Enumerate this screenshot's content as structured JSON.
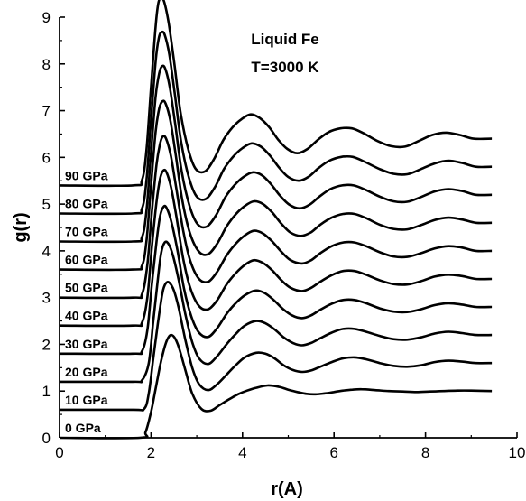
{
  "chart_data": {
    "type": "line",
    "title": "Liquid Fe",
    "subtitle": "T=3000 K",
    "xlabel": "r(A)",
    "ylabel": "g(r)",
    "xlim": [
      0,
      10
    ],
    "ylim": [
      0,
      9
    ],
    "xticks": [
      0,
      2,
      4,
      6,
      8,
      10
    ],
    "yticks": [
      0,
      1,
      2,
      3,
      4,
      5,
      6,
      7,
      8,
      9
    ],
    "grid": false,
    "legend": "labels at left of each curve",
    "series": [
      {
        "name": "0 GPa",
        "offset": 0.0,
        "x": [
          1.75,
          1.88,
          2.0,
          2.1,
          2.2,
          2.3,
          2.38,
          2.45,
          2.53,
          2.62,
          2.75,
          2.9,
          3.1,
          3.3,
          3.5,
          3.7,
          3.9,
          4.1,
          4.3,
          4.55,
          4.8,
          5.0,
          5.2,
          5.4,
          5.6,
          5.8,
          6.0,
          6.2,
          6.4,
          6.6,
          6.9,
          7.2,
          7.5,
          7.8,
          8.1,
          8.4,
          8.7,
          9.0,
          9.45
        ],
        "y": [
          0.0,
          0.12,
          0.55,
          1.05,
          1.55,
          1.95,
          2.15,
          2.2,
          2.12,
          1.9,
          1.45,
          0.95,
          0.62,
          0.58,
          0.7,
          0.82,
          0.93,
          1.01,
          1.07,
          1.12,
          1.09,
          1.03,
          0.98,
          0.94,
          0.93,
          0.95,
          0.98,
          1.01,
          1.03,
          1.04,
          1.02,
          1.0,
          0.99,
          0.98,
          0.99,
          1.0,
          1.01,
          1.01,
          1.0
        ]
      },
      {
        "name": "10 GPa",
        "offset": 0.6,
        "x": [
          1.6,
          1.85,
          1.95,
          2.05,
          2.15,
          2.25,
          2.32,
          2.4,
          2.5,
          2.6,
          2.75,
          2.9,
          3.05,
          3.25,
          3.45,
          3.65,
          3.85,
          4.05,
          4.3,
          4.5,
          4.7,
          4.9,
          5.1,
          5.3,
          5.5,
          5.7,
          5.95,
          6.2,
          6.45,
          6.7,
          7.0,
          7.3,
          7.6,
          7.9,
          8.2,
          8.5,
          8.8,
          9.1,
          9.45
        ],
        "y": [
          0.0,
          0.02,
          0.35,
          1.1,
          1.85,
          2.5,
          2.7,
          2.72,
          2.55,
          2.2,
          1.5,
          0.9,
          0.55,
          0.42,
          0.55,
          0.75,
          0.95,
          1.12,
          1.22,
          1.2,
          1.1,
          0.95,
          0.85,
          0.81,
          0.84,
          0.92,
          1.02,
          1.1,
          1.12,
          1.08,
          1.0,
          0.94,
          0.92,
          0.95,
          1.02,
          1.05,
          1.03,
          1.0,
          1.0
        ]
      },
      {
        "name": "20 GPa",
        "offset": 1.2,
        "x": [
          1.6,
          1.8,
          1.95,
          2.05,
          2.15,
          2.22,
          2.3,
          2.38,
          2.48,
          2.6,
          2.75,
          2.9,
          3.05,
          3.25,
          3.45,
          3.65,
          3.85,
          4.05,
          4.3,
          4.5,
          4.7,
          4.9,
          5.1,
          5.3,
          5.5,
          5.7,
          5.95,
          6.2,
          6.45,
          6.7,
          7.0,
          7.3,
          7.6,
          7.9,
          8.2,
          8.5,
          8.8,
          9.1,
          9.45
        ],
        "y": [
          0.0,
          0.03,
          0.4,
          1.3,
          2.2,
          2.75,
          2.98,
          2.95,
          2.7,
          2.2,
          1.45,
          0.85,
          0.5,
          0.38,
          0.55,
          0.8,
          1.02,
          1.2,
          1.3,
          1.25,
          1.12,
          0.95,
          0.83,
          0.78,
          0.83,
          0.93,
          1.05,
          1.13,
          1.13,
          1.07,
          0.98,
          0.91,
          0.9,
          0.95,
          1.03,
          1.07,
          1.04,
          1.0,
          1.0
        ]
      },
      {
        "name": "30 GPa",
        "offset": 1.8,
        "x": [
          1.6,
          1.8,
          1.92,
          2.02,
          2.12,
          2.2,
          2.28,
          2.35,
          2.45,
          2.58,
          2.72,
          2.88,
          3.05,
          3.25,
          3.45,
          3.65,
          3.85,
          4.05,
          4.28,
          4.48,
          4.68,
          4.88,
          5.08,
          5.3,
          5.5,
          5.7,
          5.95,
          6.2,
          6.45,
          6.7,
          7.0,
          7.3,
          7.6,
          7.9,
          8.2,
          8.5,
          8.8,
          9.1,
          9.45
        ],
        "y": [
          0.0,
          0.05,
          0.5,
          1.5,
          2.4,
          2.95,
          3.15,
          3.1,
          2.8,
          2.2,
          1.4,
          0.8,
          0.45,
          0.36,
          0.55,
          0.85,
          1.08,
          1.25,
          1.35,
          1.3,
          1.15,
          0.96,
          0.82,
          0.76,
          0.82,
          0.94,
          1.07,
          1.15,
          1.15,
          1.08,
          0.97,
          0.9,
          0.89,
          0.95,
          1.04,
          1.08,
          1.05,
          1.0,
          1.0
        ]
      },
      {
        "name": "40 GPa",
        "offset": 2.4,
        "x": [
          1.6,
          1.8,
          1.92,
          2.02,
          2.12,
          2.2,
          2.27,
          2.34,
          2.44,
          2.56,
          2.7,
          2.86,
          3.05,
          3.25,
          3.45,
          3.65,
          3.85,
          4.05,
          4.25,
          4.45,
          4.65,
          4.85,
          5.05,
          5.3,
          5.5,
          5.7,
          5.95,
          6.2,
          6.45,
          6.7,
          7.0,
          7.3,
          7.6,
          7.9,
          8.2,
          8.5,
          8.8,
          9.1,
          9.45
        ],
        "y": [
          0.0,
          0.06,
          0.6,
          1.7,
          2.65,
          3.15,
          3.32,
          3.28,
          2.95,
          2.3,
          1.45,
          0.8,
          0.42,
          0.35,
          0.55,
          0.88,
          1.12,
          1.3,
          1.4,
          1.34,
          1.18,
          0.97,
          0.81,
          0.74,
          0.81,
          0.94,
          1.08,
          1.17,
          1.17,
          1.09,
          0.97,
          0.89,
          0.88,
          0.95,
          1.05,
          1.09,
          1.06,
          1.0,
          1.0
        ]
      },
      {
        "name": "50 GPa",
        "offset": 3.0,
        "x": [
          1.6,
          1.8,
          1.92,
          2.02,
          2.12,
          2.2,
          2.26,
          2.33,
          2.43,
          2.55,
          2.7,
          2.86,
          3.05,
          3.25,
          3.45,
          3.65,
          3.85,
          4.05,
          4.25,
          4.45,
          4.65,
          4.85,
          5.05,
          5.3,
          5.5,
          5.7,
          5.95,
          6.2,
          6.45,
          6.7,
          7.0,
          7.3,
          7.6,
          7.9,
          8.2,
          8.5,
          8.8,
          9.1,
          9.45
        ],
        "y": [
          0.0,
          0.07,
          0.7,
          1.85,
          2.85,
          3.3,
          3.45,
          3.4,
          3.05,
          2.35,
          1.45,
          0.78,
          0.4,
          0.34,
          0.56,
          0.9,
          1.15,
          1.33,
          1.43,
          1.37,
          1.2,
          0.98,
          0.8,
          0.73,
          0.8,
          0.95,
          1.1,
          1.18,
          1.18,
          1.1,
          0.97,
          0.88,
          0.87,
          0.95,
          1.05,
          1.1,
          1.07,
          1.0,
          1.0
        ]
      },
      {
        "name": "60 GPa",
        "offset": 3.6,
        "x": [
          1.6,
          1.8,
          1.9,
          2.0,
          2.1,
          2.18,
          2.25,
          2.32,
          2.42,
          2.54,
          2.68,
          2.85,
          3.05,
          3.25,
          3.45,
          3.65,
          3.85,
          4.05,
          4.25,
          4.45,
          4.65,
          4.85,
          5.05,
          5.28,
          5.5,
          5.7,
          5.95,
          6.2,
          6.45,
          6.7,
          7.0,
          7.3,
          7.6,
          7.9,
          8.2,
          8.5,
          8.8,
          9.1,
          9.45
        ],
        "y": [
          0.0,
          0.08,
          0.6,
          1.8,
          2.95,
          3.45,
          3.6,
          3.55,
          3.2,
          2.45,
          1.5,
          0.78,
          0.38,
          0.33,
          0.56,
          0.92,
          1.18,
          1.36,
          1.46,
          1.4,
          1.22,
          0.98,
          0.79,
          0.72,
          0.8,
          0.96,
          1.11,
          1.19,
          1.19,
          1.1,
          0.96,
          0.87,
          0.86,
          0.95,
          1.06,
          1.11,
          1.07,
          1.0,
          1.0
        ]
      },
      {
        "name": "70 GPa",
        "offset": 4.2,
        "x": [
          1.6,
          1.8,
          1.9,
          2.0,
          2.1,
          2.18,
          2.24,
          2.31,
          2.41,
          2.53,
          2.67,
          2.84,
          3.02,
          3.22,
          3.42,
          3.62,
          3.82,
          4.02,
          4.22,
          4.42,
          4.62,
          4.82,
          5.02,
          5.25,
          5.47,
          5.68,
          5.92,
          6.18,
          6.43,
          6.68,
          7.0,
          7.3,
          7.6,
          7.9,
          8.2,
          8.5,
          8.8,
          9.1,
          9.45
        ],
        "y": [
          0.0,
          0.09,
          0.65,
          1.9,
          3.1,
          3.6,
          3.75,
          3.7,
          3.3,
          2.5,
          1.5,
          0.77,
          0.37,
          0.32,
          0.56,
          0.94,
          1.2,
          1.38,
          1.48,
          1.42,
          1.23,
          0.98,
          0.79,
          0.71,
          0.79,
          0.96,
          1.12,
          1.2,
          1.2,
          1.11,
          0.96,
          0.86,
          0.85,
          0.95,
          1.07,
          1.12,
          1.08,
          1.0,
          1.0
        ]
      },
      {
        "name": "80 GPa",
        "offset": 4.8,
        "x": [
          1.6,
          1.8,
          1.9,
          2.0,
          2.1,
          2.17,
          2.23,
          2.3,
          2.4,
          2.52,
          2.66,
          2.83,
          3.0,
          3.2,
          3.4,
          3.6,
          3.8,
          4.0,
          4.2,
          4.4,
          4.6,
          4.8,
          5.0,
          5.23,
          5.45,
          5.66,
          5.9,
          6.16,
          6.41,
          6.66,
          7.0,
          7.3,
          7.6,
          7.9,
          8.2,
          8.5,
          8.8,
          9.1,
          9.45
        ],
        "y": [
          0.0,
          0.1,
          0.7,
          2.0,
          3.25,
          3.75,
          3.88,
          3.82,
          3.4,
          2.55,
          1.52,
          0.76,
          0.36,
          0.31,
          0.57,
          0.96,
          1.22,
          1.4,
          1.5,
          1.43,
          1.24,
          0.98,
          0.78,
          0.7,
          0.79,
          0.97,
          1.13,
          1.21,
          1.21,
          1.11,
          0.95,
          0.85,
          0.84,
          0.95,
          1.07,
          1.13,
          1.08,
          1.0,
          1.0
        ]
      },
      {
        "name": "90 GPa",
        "offset": 5.4,
        "x": [
          1.6,
          1.8,
          1.9,
          2.0,
          2.1,
          2.16,
          2.22,
          2.29,
          2.39,
          2.51,
          2.65,
          2.82,
          2.98,
          3.18,
          3.38,
          3.58,
          3.78,
          3.98,
          4.18,
          4.38,
          4.58,
          4.78,
          4.98,
          5.2,
          5.42,
          5.64,
          5.88,
          6.14,
          6.39,
          6.64,
          6.95,
          7.25,
          7.55,
          7.85,
          8.15,
          8.45,
          8.75,
          9.05,
          9.45
        ],
        "y": [
          0.0,
          0.11,
          0.75,
          2.1,
          3.4,
          3.9,
          4.0,
          3.92,
          3.45,
          2.6,
          1.53,
          0.75,
          0.35,
          0.3,
          0.57,
          0.97,
          1.24,
          1.42,
          1.52,
          1.44,
          1.25,
          0.98,
          0.78,
          0.69,
          0.78,
          0.97,
          1.14,
          1.22,
          1.22,
          1.12,
          0.95,
          0.84,
          0.83,
          0.95,
          1.08,
          1.13,
          1.08,
          1.0,
          1.0
        ]
      }
    ]
  }
}
